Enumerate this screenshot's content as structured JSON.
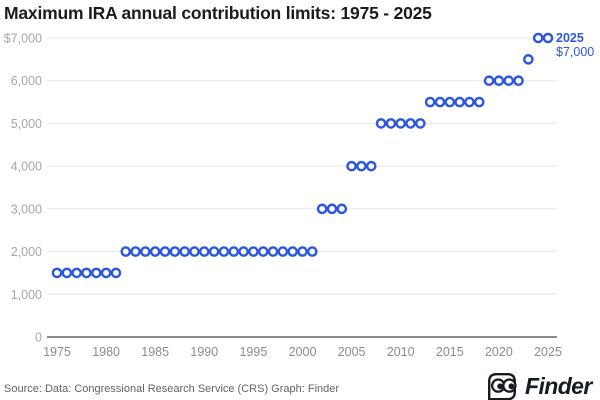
{
  "title": "Maximum IRA annual contribution limits: 1975 - 2025",
  "annotation": {
    "year_label": "2025",
    "value_label": "$7,000"
  },
  "footer": {
    "source": "Source: Data: Congressional Research Service (CRS) Graph: Finder",
    "brand": "Finder"
  },
  "colors": {
    "accent": "#2b57e0",
    "title": "#1c1c1c",
    "grid": "#e9e9e9",
    "axis": "#8a8a8a",
    "y_tick": "#a7a7a7",
    "x_tick": "#8c8c8c",
    "source_text": "#5f6368",
    "logo": "#161b22"
  },
  "chart_data": {
    "type": "scatter",
    "title": "Maximum IRA annual contribution limits: 1975 - 2025",
    "xlabel": "",
    "ylabel": "",
    "xlim": [
      1975,
      2025
    ],
    "ylim": [
      0,
      7000
    ],
    "grid": true,
    "marker": "open-circle",
    "point_color": "#2b57e0",
    "grid_color": "#e9e9e9",
    "axis_color": "#8a8a8a",
    "y_tick_color": "#a7a7a7",
    "x_tick_color": "#8c8c8c",
    "years": [
      1975,
      1976,
      1977,
      1978,
      1979,
      1980,
      1981,
      1982,
      1983,
      1984,
      1985,
      1986,
      1987,
      1988,
      1989,
      1990,
      1991,
      1992,
      1993,
      1994,
      1995,
      1996,
      1997,
      1998,
      1999,
      2000,
      2001,
      2002,
      2003,
      2004,
      2005,
      2006,
      2007,
      2008,
      2009,
      2010,
      2011,
      2012,
      2013,
      2014,
      2015,
      2016,
      2017,
      2018,
      2019,
      2020,
      2021,
      2022,
      2023,
      2024,
      2025
    ],
    "values": [
      1500,
      1500,
      1500,
      1500,
      1500,
      1500,
      1500,
      2000,
      2000,
      2000,
      2000,
      2000,
      2000,
      2000,
      2000,
      2000,
      2000,
      2000,
      2000,
      2000,
      2000,
      2000,
      2000,
      2000,
      2000,
      2000,
      2000,
      3000,
      3000,
      3000,
      4000,
      4000,
      4000,
      5000,
      5000,
      5000,
      5000,
      5000,
      5500,
      5500,
      5500,
      5500,
      5500,
      5500,
      6000,
      6000,
      6000,
      6000,
      6500,
      7000,
      7000
    ],
    "y_ticks": [
      {
        "value": 7000,
        "label": "$7,000"
      },
      {
        "value": 6000,
        "label": "6,000"
      },
      {
        "value": 5000,
        "label": "5,000"
      },
      {
        "value": 4000,
        "label": "4,000"
      },
      {
        "value": 3000,
        "label": "3,000"
      },
      {
        "value": 2000,
        "label": "2,000"
      },
      {
        "value": 1000,
        "label": "1,000"
      },
      {
        "value": 0,
        "label": "0"
      }
    ],
    "x_ticks": [
      {
        "value": 1975,
        "label": "1975"
      },
      {
        "value": 1980,
        "label": "1980"
      },
      {
        "value": 1985,
        "label": "1985"
      },
      {
        "value": 1990,
        "label": "1990"
      },
      {
        "value": 1995,
        "label": "1995"
      },
      {
        "value": 2000,
        "label": "2000"
      },
      {
        "value": 2005,
        "label": "2005"
      },
      {
        "value": 2010,
        "label": "2010"
      },
      {
        "value": 2015,
        "label": "2015"
      },
      {
        "value": 2020,
        "label": "2020"
      },
      {
        "value": 2025,
        "label": "2025"
      }
    ]
  }
}
